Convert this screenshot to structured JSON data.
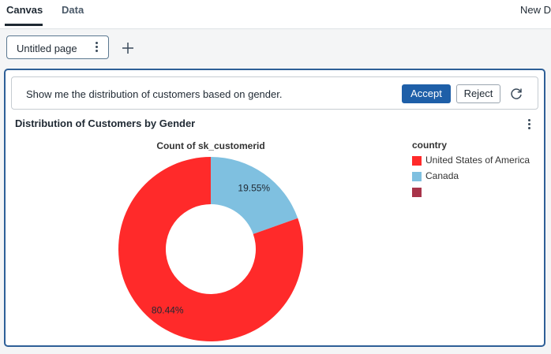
{
  "top_tabs": {
    "canvas": "Canvas",
    "data": "Data"
  },
  "top_right": "New D",
  "page_tab": {
    "label": "Untitled page"
  },
  "prompt": {
    "text": "Show me the distribution of customers based on gender.",
    "accept_label": "Accept",
    "reject_label": "Reject"
  },
  "widget": {
    "title": "Distribution of Customers by Gender"
  },
  "colors": {
    "accent": "#1e5fa8",
    "usa": "#ff2a2a",
    "canada": "#7fc0e0",
    "third": "#a8344a"
  },
  "icons": [
    "kebab-menu-icon",
    "plus-icon",
    "refresh-icon"
  ],
  "chart_data": {
    "type": "pie",
    "title": "Count of sk_customerid",
    "legend_title": "country",
    "legend_position": "right",
    "donut": true,
    "slices": [
      {
        "label": "Canada",
        "value": 19.55,
        "display": "19.55%",
        "color": "#7fc0e0"
      },
      {
        "label": "United States of America",
        "value": 80.44,
        "display": "80.44%",
        "color": "#ff2a2a"
      }
    ],
    "legend": [
      {
        "label": "United States of America",
        "color": "#ff2a2a"
      },
      {
        "label": "Canada",
        "color": "#7fc0e0"
      },
      {
        "label": "",
        "color": "#a8344a"
      }
    ]
  }
}
